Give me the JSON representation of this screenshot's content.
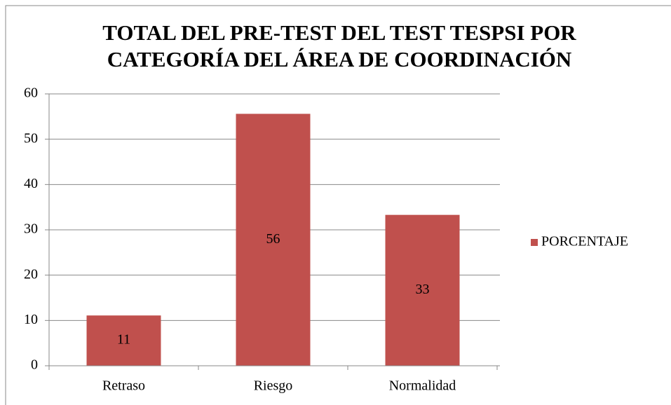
{
  "chart_data": {
    "type": "bar",
    "title": [
      "TOTAL DEL PRE-TEST DEL TEST TESPSI POR",
      "CATEGORÍA DEL ÁREA DE COORDINACIÓN"
    ],
    "categories": [
      "Retraso",
      "Riesgo",
      "Normalidad"
    ],
    "series": [
      {
        "name": "PORCENTAJE",
        "color": "#c0504d",
        "values": [
          11.1,
          55.6,
          33.3
        ],
        "value_labels": [
          "11",
          "56",
          "33"
        ]
      }
    ],
    "ylim": [
      0,
      60
    ],
    "yticks": [
      0,
      10,
      20,
      30,
      40,
      50,
      60
    ],
    "grid": true,
    "legend": "right"
  }
}
